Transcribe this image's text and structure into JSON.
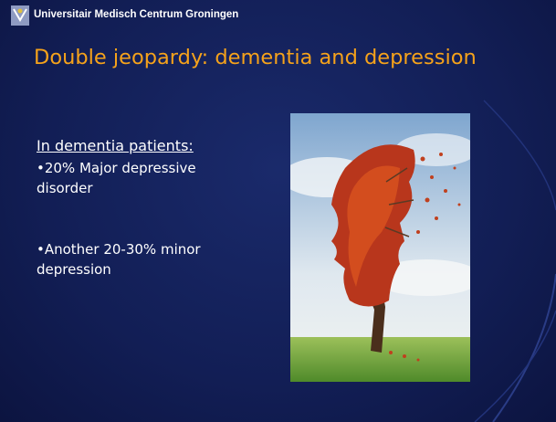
{
  "header": {
    "organization": "Universitair Medisch Centrum Groningen"
  },
  "title": "Double jeopardy: dementia and depression",
  "body": {
    "heading": "In dementia patients:",
    "bullets": [
      "•20% Major depressive disorder",
      "•Another 20-30% minor depression"
    ]
  }
}
